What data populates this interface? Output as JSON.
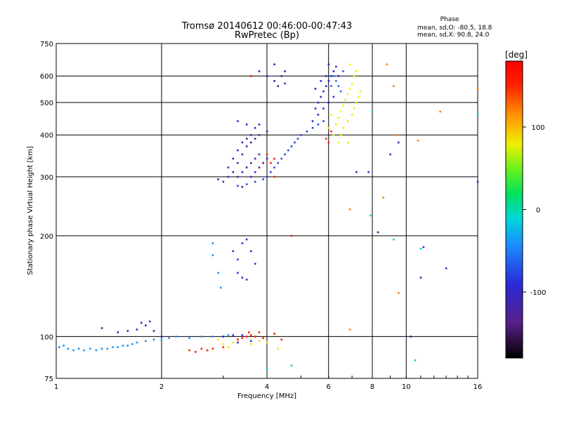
{
  "chart_data": {
    "type": "scatter",
    "title": "Tromsø 20140612 00:46:00-00:47:43",
    "subtitle": "RwPretec (Bp)",
    "stats": {
      "heading": "Phase",
      "line1": "mean, sd,O: -80.5, 18.8",
      "line2": "mean, sd,X:  90.8, 24.0"
    },
    "xlabel": "Frequency [MHz]",
    "ylabel": "Stationary phase Virtual Height [km]",
    "x_scale": "log2",
    "y_scale": "log",
    "xlim": [
      1,
      16
    ],
    "ylim": [
      75,
      750
    ],
    "x_ticks": [
      1,
      2,
      4,
      6,
      8,
      10,
      16
    ],
    "y_ticks": [
      75,
      100,
      200,
      300,
      400,
      500,
      600,
      750
    ],
    "grid": true,
    "colorbar": {
      "label": "[deg]",
      "range": [
        -180,
        180
      ],
      "ticks": [
        100,
        0,
        -100
      ]
    },
    "series": [
      {
        "phase_deg": -40,
        "points": [
          [
            1.02,
            93
          ],
          [
            1.05,
            94
          ],
          [
            1.08,
            92
          ],
          [
            1.12,
            91
          ],
          [
            1.16,
            92
          ],
          [
            1.2,
            91
          ],
          [
            1.25,
            92
          ],
          [
            1.3,
            91
          ],
          [
            1.35,
            92
          ],
          [
            1.4,
            92
          ],
          [
            1.45,
            93
          ],
          [
            1.5,
            93
          ],
          [
            1.55,
            94
          ],
          [
            1.6,
            94
          ],
          [
            1.65,
            95
          ],
          [
            1.7,
            96
          ],
          [
            1.8,
            97
          ],
          [
            1.9,
            98
          ],
          [
            2.0,
            98
          ],
          [
            2.1,
            99
          ],
          [
            2.2,
            100
          ],
          [
            2.4,
            99
          ],
          [
            2.6,
            100
          ],
          [
            2.8,
            100
          ],
          [
            3.0,
            100
          ],
          [
            3.1,
            101
          ]
        ]
      },
      {
        "phase_deg": -100,
        "points": [
          [
            1.35,
            106
          ],
          [
            1.5,
            103
          ],
          [
            1.6,
            104
          ],
          [
            1.7,
            105
          ],
          [
            1.75,
            110
          ],
          [
            1.8,
            108
          ],
          [
            1.85,
            111
          ],
          [
            1.9,
            104
          ],
          [
            2.0,
            100
          ],
          [
            3.0,
            100
          ],
          [
            3.2,
            101
          ],
          [
            3.4,
            101
          ],
          [
            3.3,
            96
          ],
          [
            3.6,
            97
          ]
        ]
      },
      {
        "phase_deg": 150,
        "points": [
          [
            2.4,
            91
          ],
          [
            2.5,
            90
          ],
          [
            2.6,
            92
          ],
          [
            2.7,
            91
          ],
          [
            2.8,
            92
          ],
          [
            3.0,
            93
          ],
          [
            3.3,
            98
          ],
          [
            3.4,
            99
          ],
          [
            3.5,
            100
          ],
          [
            3.55,
            103
          ],
          [
            3.6,
            101
          ],
          [
            3.7,
            100
          ],
          [
            3.8,
            103
          ],
          [
            3.9,
            99
          ],
          [
            4.2,
            102
          ],
          [
            4.4,
            98
          ]
        ]
      },
      {
        "phase_deg": 80,
        "points": [
          [
            2.9,
            98
          ],
          [
            3.0,
            95
          ],
          [
            3.1,
            93
          ],
          [
            3.2,
            96
          ],
          [
            3.6,
            95
          ],
          [
            3.8,
            97
          ],
          [
            4.0,
            96
          ],
          [
            4.3,
            92
          ]
        ]
      },
      {
        "phase_deg": -120,
        "points": [
          [
            2.9,
            295
          ],
          [
            3.0,
            290
          ],
          [
            3.1,
            300
          ],
          [
            3.2,
            310
          ],
          [
            3.3,
            330
          ],
          [
            3.4,
            350
          ],
          [
            3.5,
            370
          ],
          [
            3.6,
            380
          ],
          [
            3.7,
            390
          ],
          [
            3.8,
            400
          ],
          [
            3.1,
            320
          ],
          [
            3.2,
            340
          ],
          [
            3.3,
            360
          ],
          [
            3.4,
            380
          ],
          [
            3.5,
            390
          ],
          [
            3.6,
            400
          ],
          [
            3.3,
            300
          ],
          [
            3.4,
            310
          ],
          [
            3.5,
            320
          ],
          [
            3.6,
            330
          ],
          [
            3.7,
            340
          ],
          [
            3.8,
            350
          ],
          [
            3.4,
            280
          ],
          [
            3.6,
            300
          ],
          [
            3.7,
            310
          ],
          [
            3.8,
            320
          ],
          [
            3.9,
            330
          ],
          [
            4.0,
            340
          ]
        ]
      },
      {
        "phase_deg": -75,
        "points": [
          [
            3.3,
            282
          ],
          [
            3.5,
            285
          ],
          [
            3.7,
            290
          ],
          [
            3.9,
            295
          ],
          [
            4.0,
            300
          ],
          [
            4.1,
            310
          ],
          [
            4.2,
            320
          ],
          [
            4.3,
            330
          ],
          [
            4.4,
            340
          ],
          [
            4.5,
            350
          ],
          [
            4.6,
            360
          ],
          [
            4.7,
            370
          ],
          [
            4.8,
            380
          ],
          [
            4.9,
            390
          ],
          [
            5.0,
            400
          ],
          [
            5.2,
            410
          ],
          [
            5.4,
            420
          ],
          [
            5.6,
            430
          ],
          [
            5.8,
            440
          ]
        ]
      },
      {
        "phase_deg": -110,
        "points": [
          [
            3.3,
            440
          ],
          [
            3.5,
            430
          ],
          [
            3.7,
            420
          ],
          [
            3.8,
            430
          ],
          [
            4.0,
            410
          ],
          [
            3.6,
            600
          ],
          [
            3.8,
            620
          ],
          [
            4.0,
            600
          ],
          [
            4.2,
            580
          ],
          [
            4.3,
            560
          ],
          [
            4.4,
            600
          ],
          [
            4.2,
            650
          ],
          [
            4.5,
            570
          ],
          [
            4.5,
            620
          ]
        ]
      },
      {
        "phase_deg": -95,
        "points": [
          [
            5.4,
            440
          ],
          [
            5.5,
            480
          ],
          [
            5.6,
            500
          ],
          [
            5.7,
            520
          ],
          [
            5.8,
            540
          ],
          [
            5.9,
            560
          ],
          [
            6.0,
            580
          ],
          [
            6.1,
            600
          ],
          [
            6.2,
            620
          ],
          [
            5.6,
            460
          ],
          [
            5.8,
            480
          ],
          [
            6.0,
            500
          ],
          [
            6.2,
            520
          ],
          [
            5.5,
            550
          ],
          [
            5.7,
            580
          ],
          [
            5.9,
            600
          ],
          [
            6.3,
            640
          ],
          [
            6.0,
            650
          ],
          [
            6.4,
            600
          ]
        ]
      },
      {
        "phase_deg": -85,
        "points": [
          [
            3.2,
            180
          ],
          [
            3.3,
            170
          ],
          [
            3.4,
            190
          ],
          [
            3.5,
            195
          ],
          [
            3.6,
            180
          ],
          [
            3.7,
            165
          ],
          [
            3.3,
            155
          ],
          [
            3.4,
            150
          ],
          [
            3.5,
            148
          ]
        ]
      },
      {
        "phase_deg": -40,
        "points": [
          [
            2.8,
            190
          ],
          [
            2.8,
            175
          ],
          [
            2.9,
            155
          ],
          [
            2.95,
            140
          ]
        ]
      },
      {
        "phase_deg": 80,
        "points": [
          [
            6.3,
            430
          ],
          [
            6.4,
            450
          ],
          [
            6.5,
            470
          ],
          [
            6.6,
            490
          ],
          [
            6.7,
            510
          ],
          [
            6.8,
            530
          ],
          [
            6.9,
            550
          ],
          [
            7.0,
            570
          ],
          [
            6.5,
            400
          ],
          [
            6.6,
            420
          ],
          [
            6.8,
            440
          ],
          [
            7.0,
            460
          ],
          [
            7.1,
            480
          ],
          [
            7.2,
            500
          ],
          [
            7.3,
            520
          ],
          [
            7.4,
            540
          ],
          [
            7.1,
            600
          ],
          [
            7.2,
            620
          ],
          [
            6.9,
            650
          ],
          [
            6.2,
            400
          ],
          [
            6.4,
            380
          ],
          [
            6.8,
            380
          ],
          [
            6.0,
            420
          ],
          [
            6.1,
            460
          ]
        ]
      },
      {
        "phase_deg": -60,
        "points": [
          [
            6.2,
            600
          ],
          [
            6.3,
            580
          ],
          [
            6.4,
            560
          ],
          [
            6.5,
            540
          ],
          [
            6.6,
            620
          ],
          [
            6.1,
            560
          ]
        ]
      },
      {
        "phase_deg": 150,
        "points": [
          [
            4.1,
            330
          ],
          [
            4.2,
            340
          ],
          [
            4.0,
            350
          ],
          [
            5.9,
            390
          ],
          [
            6.1,
            410
          ],
          [
            6.0,
            380
          ],
          [
            4.7,
            200
          ],
          [
            3.6,
            600
          ],
          [
            4.2,
            300
          ]
        ]
      },
      {
        "phase_deg": -120,
        "points": [
          [
            7.2,
            310
          ],
          [
            7.8,
            310
          ],
          [
            9.0,
            350
          ],
          [
            9.5,
            380
          ],
          [
            11.0,
            150
          ],
          [
            13.0,
            160
          ],
          [
            16,
            290
          ],
          [
            8.3,
            205
          ],
          [
            10.3,
            100
          ],
          [
            11.2,
            185
          ]
        ]
      },
      {
        "phase_deg": 120,
        "points": [
          [
            8.8,
            650
          ],
          [
            9.2,
            560
          ],
          [
            9.4,
            400
          ],
          [
            8.6,
            260
          ],
          [
            12.5,
            470
          ],
          [
            10.8,
            385
          ],
          [
            6.9,
            240
          ],
          [
            6.9,
            105
          ],
          [
            9.5,
            135
          ],
          [
            16,
            550
          ]
        ]
      },
      {
        "phase_deg": -15,
        "points": [
          [
            4.0,
            80
          ],
          [
            4.7,
            82
          ],
          [
            7.9,
            230
          ],
          [
            9.2,
            195
          ],
          [
            11.0,
            183
          ],
          [
            10.6,
            85
          ],
          [
            16,
            460
          ],
          [
            8.0,
            470
          ]
        ]
      }
    ]
  }
}
